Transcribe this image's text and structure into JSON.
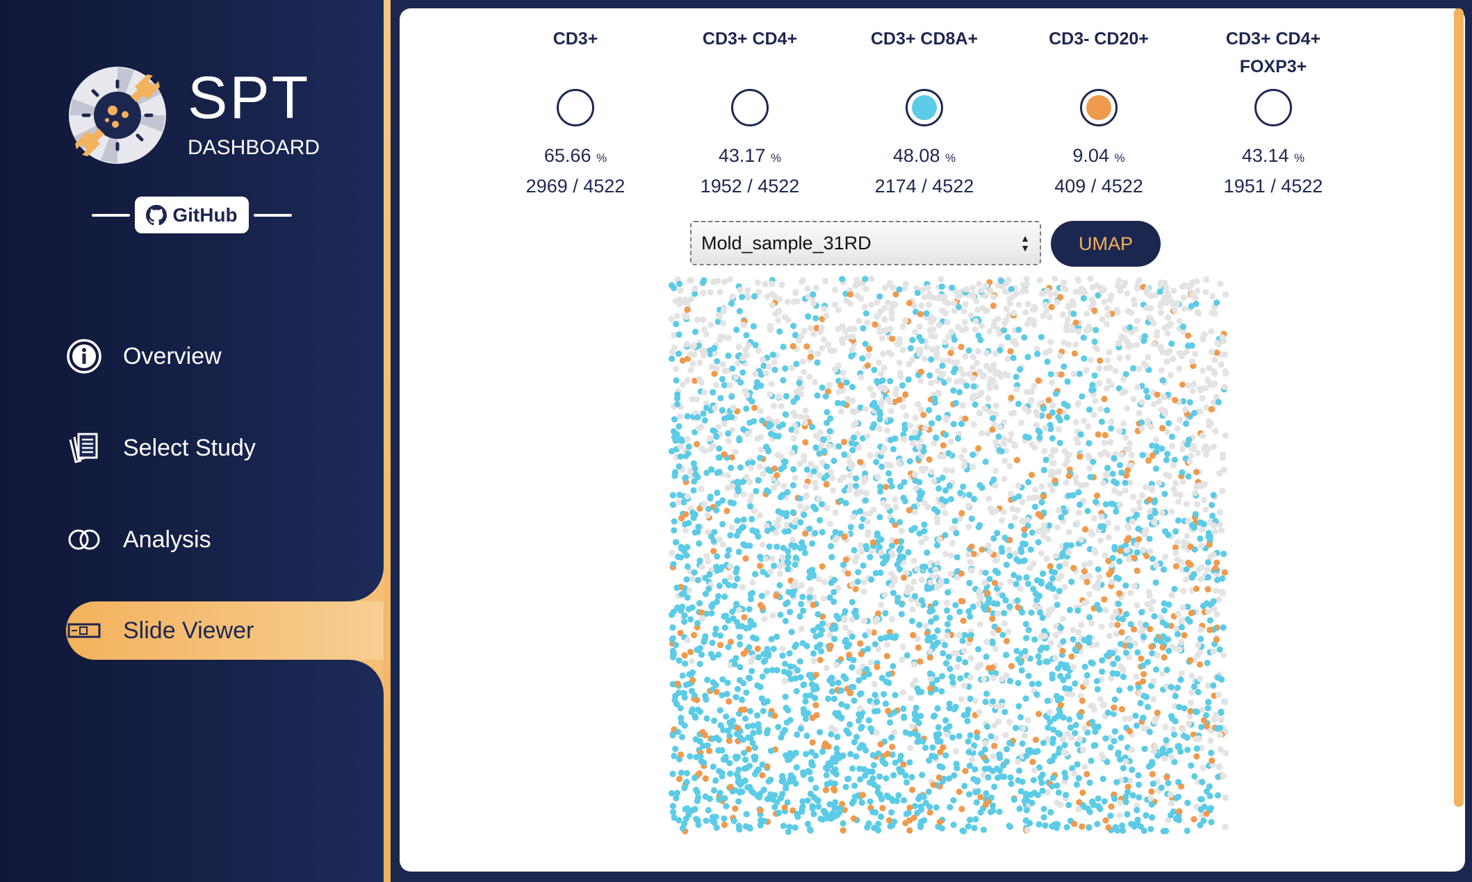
{
  "brand": {
    "title": "SPT",
    "subtitle": "DASHBOARD",
    "github_label": "GitHub"
  },
  "nav": [
    {
      "label": "Overview",
      "icon": "info-icon"
    },
    {
      "label": "Select Study",
      "icon": "documents-icon"
    },
    {
      "label": "Analysis",
      "icon": "venn-icon"
    },
    {
      "label": "Slide Viewer",
      "icon": "slide-icon",
      "active": true
    }
  ],
  "markers": [
    {
      "name_lines": [
        "CD3+",
        ""
      ],
      "percent": "65.66",
      "percent_unit": "%",
      "count": "2969 / 4522",
      "selected": false,
      "color": ""
    },
    {
      "name_lines": [
        "CD3+ CD4+",
        ""
      ],
      "percent": "43.17",
      "percent_unit": "%",
      "count": "1952 / 4522",
      "selected": false,
      "color": ""
    },
    {
      "name_lines": [
        "CD3+ CD8A+",
        ""
      ],
      "percent": "48.08",
      "percent_unit": "%",
      "count": "2174 / 4522",
      "selected": true,
      "color": "#5ccbe6"
    },
    {
      "name_lines": [
        "CD3- CD20+",
        ""
      ],
      "percent": "9.04",
      "percent_unit": "%",
      "count": "409 / 4522",
      "selected": true,
      "color": "#ef9a4c"
    },
    {
      "name_lines": [
        "CD3+ CD4+",
        "FOXP3+"
      ],
      "percent": "43.14",
      "percent_unit": "%",
      "count": "1951 / 4522",
      "selected": false,
      "color": ""
    }
  ],
  "sample_select": {
    "value": "Mold_sample_31RD"
  },
  "umap_label": "UMAP",
  "colors": {
    "navy": "#1c2750",
    "accent": "#f3b25d",
    "cd8": "#5ccbe6",
    "cd20": "#ef9a4c",
    "other": "#e3e3e3"
  }
}
